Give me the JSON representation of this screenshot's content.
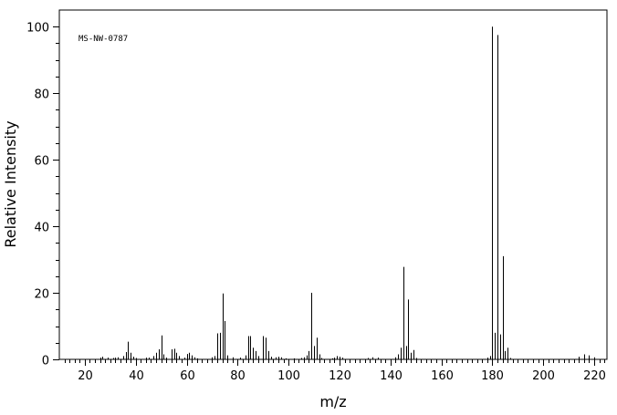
{
  "chart_data": {
    "type": "bar",
    "subtype": "mass-spectrum-stick",
    "annotation": "MS-NW-0787",
    "xlabel": "m/z",
    "ylabel": "Relative Intensity",
    "xlim": [
      10,
      225
    ],
    "ylim": [
      0,
      105
    ],
    "x_major_ticks": [
      20,
      40,
      60,
      80,
      100,
      120,
      140,
      160,
      180,
      200,
      220
    ],
    "y_major_ticks": [
      0,
      20,
      40,
      60,
      80,
      100
    ],
    "grid": false,
    "legend": "none",
    "bar_color": "#000000",
    "peaks": [
      {
        "x": 26,
        "y": 0.5
      },
      {
        "x": 27,
        "y": 0.8
      },
      {
        "x": 29,
        "y": 0.5
      },
      {
        "x": 31,
        "y": 0.4
      },
      {
        "x": 32,
        "y": 0.5
      },
      {
        "x": 33,
        "y": 0.6
      },
      {
        "x": 35,
        "y": 1.0
      },
      {
        "x": 36,
        "y": 2.2
      },
      {
        "x": 37,
        "y": 5.3
      },
      {
        "x": 38,
        "y": 2.0
      },
      {
        "x": 39,
        "y": 0.8
      },
      {
        "x": 40,
        "y": 0.4
      },
      {
        "x": 44,
        "y": 0.5
      },
      {
        "x": 45,
        "y": 0.5
      },
      {
        "x": 47,
        "y": 1.0
      },
      {
        "x": 48,
        "y": 2.0
      },
      {
        "x": 49,
        "y": 3.0
      },
      {
        "x": 50,
        "y": 7.2
      },
      {
        "x": 51,
        "y": 1.5
      },
      {
        "x": 52,
        "y": 0.5
      },
      {
        "x": 54,
        "y": 3.0
      },
      {
        "x": 55,
        "y": 3.2
      },
      {
        "x": 56,
        "y": 2.0
      },
      {
        "x": 57,
        "y": 1.0
      },
      {
        "x": 59,
        "y": 0.5
      },
      {
        "x": 60,
        "y": 1.6
      },
      {
        "x": 61,
        "y": 2.0
      },
      {
        "x": 62,
        "y": 1.2
      },
      {
        "x": 63,
        "y": 0.6
      },
      {
        "x": 64,
        "y": 0.3
      },
      {
        "x": 70,
        "y": 0.6
      },
      {
        "x": 71,
        "y": 1.0
      },
      {
        "x": 72,
        "y": 7.8
      },
      {
        "x": 73,
        "y": 8.0
      },
      {
        "x": 74,
        "y": 19.8
      },
      {
        "x": 75,
        "y": 11.5
      },
      {
        "x": 76,
        "y": 1.2
      },
      {
        "x": 78,
        "y": 0.6
      },
      {
        "x": 81,
        "y": 0.5
      },
      {
        "x": 83,
        "y": 1.2
      },
      {
        "x": 84,
        "y": 7.0
      },
      {
        "x": 85,
        "y": 7.0
      },
      {
        "x": 86,
        "y": 3.5
      },
      {
        "x": 87,
        "y": 2.5
      },
      {
        "x": 88,
        "y": 1.0
      },
      {
        "x": 90,
        "y": 7.0
      },
      {
        "x": 91,
        "y": 6.5
      },
      {
        "x": 92,
        "y": 2.5
      },
      {
        "x": 93,
        "y": 0.8
      },
      {
        "x": 95,
        "y": 0.6
      },
      {
        "x": 96,
        "y": 0.8
      },
      {
        "x": 97,
        "y": 0.6
      },
      {
        "x": 99,
        "y": 0.3
      },
      {
        "x": 102,
        "y": 0.3
      },
      {
        "x": 105,
        "y": 0.4
      },
      {
        "x": 106,
        "y": 0.6
      },
      {
        "x": 107,
        "y": 1.2
      },
      {
        "x": 108,
        "y": 2.5
      },
      {
        "x": 109,
        "y": 20.0
      },
      {
        "x": 110,
        "y": 4.0
      },
      {
        "x": 111,
        "y": 6.5
      },
      {
        "x": 112,
        "y": 1.5
      },
      {
        "x": 113,
        "y": 0.4
      },
      {
        "x": 117,
        "y": 0.3
      },
      {
        "x": 118,
        "y": 0.5
      },
      {
        "x": 119,
        "y": 1.0
      },
      {
        "x": 120,
        "y": 0.8
      },
      {
        "x": 121,
        "y": 0.5
      },
      {
        "x": 131,
        "y": 0.4
      },
      {
        "x": 133,
        "y": 0.6
      },
      {
        "x": 135,
        "y": 0.5
      },
      {
        "x": 142,
        "y": 0.6
      },
      {
        "x": 143,
        "y": 1.5
      },
      {
        "x": 144,
        "y": 3.5
      },
      {
        "x": 145,
        "y": 27.8
      },
      {
        "x": 146,
        "y": 4.0
      },
      {
        "x": 147,
        "y": 18.0
      },
      {
        "x": 148,
        "y": 2.0
      },
      {
        "x": 149,
        "y": 2.8
      },
      {
        "x": 150,
        "y": 0.4
      },
      {
        "x": 178,
        "y": 0.5
      },
      {
        "x": 179,
        "y": 1.0
      },
      {
        "x": 180,
        "y": 100.0
      },
      {
        "x": 181,
        "y": 8.0
      },
      {
        "x": 182,
        "y": 97.5
      },
      {
        "x": 183,
        "y": 7.5
      },
      {
        "x": 184,
        "y": 31.0
      },
      {
        "x": 185,
        "y": 2.5
      },
      {
        "x": 186,
        "y": 3.5
      },
      {
        "x": 187,
        "y": 0.4
      },
      {
        "x": 214,
        "y": 0.8
      },
      {
        "x": 216,
        "y": 1.5
      },
      {
        "x": 218,
        "y": 1.2
      },
      {
        "x": 220,
        "y": 0.6
      }
    ]
  }
}
